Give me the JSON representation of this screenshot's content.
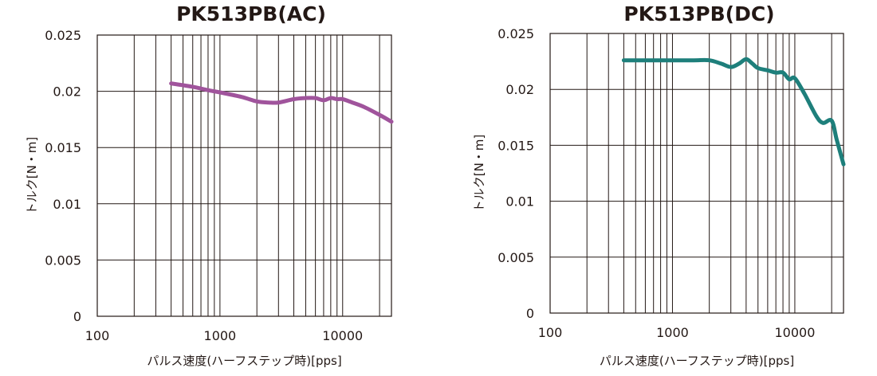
{
  "chart_data": [
    {
      "type": "line",
      "title": "PK513PB(AC)",
      "xlabel": "パルス速度(ハーフステップ時)[pps]",
      "ylabel": "トルク[N・m]",
      "x_scale": "log",
      "xlim": [
        100,
        25000
      ],
      "ylim": [
        0,
        0.025
      ],
      "x_ticks": [
        100,
        1000,
        10000
      ],
      "x_tick_labels": [
        "100",
        "1000",
        "10000"
      ],
      "y_ticks": [
        0,
        0.005,
        0.01,
        0.015,
        0.02,
        0.025
      ],
      "y_tick_labels": [
        "0",
        "0.005",
        "0.01",
        "0.015",
        "0.02",
        "0.025"
      ],
      "grid": true,
      "series": [
        {
          "color": "#a0549c",
          "x": [
            400,
            600,
            800,
            1000,
            1500,
            2000,
            2500,
            3000,
            4000,
            5000,
            6000,
            7000,
            8000,
            9000,
            10000,
            12000,
            15000,
            20000,
            25000
          ],
          "y": [
            0.0207,
            0.0204,
            0.0201,
            0.0199,
            0.0195,
            0.0191,
            0.019,
            0.019,
            0.0193,
            0.0194,
            0.0194,
            0.0192,
            0.0194,
            0.0193,
            0.0193,
            0.019,
            0.0186,
            0.0179,
            0.0173
          ]
        }
      ]
    },
    {
      "type": "line",
      "title": "PK513PB(DC)",
      "xlabel": "パルス速度(ハーフステップ時)[pps]",
      "ylabel": "トルク[N・m]",
      "x_scale": "log",
      "xlim": [
        100,
        25000
      ],
      "ylim": [
        0,
        0.025
      ],
      "x_ticks": [
        100,
        1000,
        10000
      ],
      "x_tick_labels": [
        "100",
        "1000",
        "10000"
      ],
      "y_ticks": [
        0,
        0.005,
        0.01,
        0.015,
        0.02,
        0.025
      ],
      "y_tick_labels": [
        "0",
        "0.005",
        "0.01",
        "0.015",
        "0.02",
        "0.025"
      ],
      "grid": true,
      "series": [
        {
          "color": "#1e7f7b",
          "x": [
            400,
            700,
            1000,
            1500,
            2000,
            2500,
            3000,
            3500,
            4000,
            4500,
            5000,
            6000,
            7000,
            8000,
            9000,
            10000,
            12000,
            15000,
            17000,
            20000,
            22000,
            25000
          ],
          "y": [
            0.0226,
            0.0226,
            0.0226,
            0.0226,
            0.0226,
            0.0223,
            0.022,
            0.0223,
            0.0227,
            0.0223,
            0.0219,
            0.0217,
            0.0215,
            0.0215,
            0.0209,
            0.021,
            0.0196,
            0.0176,
            0.017,
            0.0172,
            0.0155,
            0.0133
          ]
        }
      ]
    }
  ]
}
